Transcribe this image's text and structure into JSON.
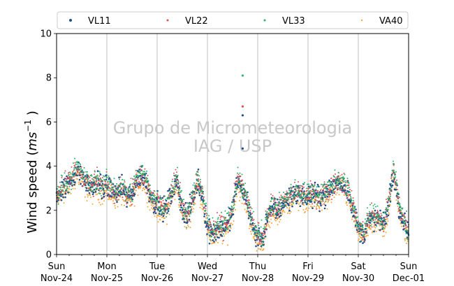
{
  "chart_data": {
    "type": "scatter",
    "title": "",
    "xlabel": "",
    "ylabel_text": "Wind speed (",
    "ylabel_unit_base": "ms",
    "ylabel_unit_exp": "−1",
    "ylabel_close": " )",
    "ylim": [
      0,
      10
    ],
    "yticks": [
      "0",
      "2",
      "4",
      "6",
      "8",
      "10"
    ],
    "xtick_day_names": [
      "Sun",
      "Mon",
      "Tue",
      "Wed",
      "Thu",
      "Fri",
      "Sat",
      "Sun"
    ],
    "xtick_dates": [
      "Nov-24",
      "Nov-25",
      "Nov-26",
      "Nov-27",
      "Nov-28",
      "Nov-29",
      "Nov-30",
      "Dec-01"
    ],
    "x_range_days": [
      0,
      7
    ],
    "grid": "vertical lines at day ticks",
    "legend_position": "top, above plot, one row",
    "watermark_line1": "Grupo de Micrometeorologia",
    "watermark_line2": "IAG / USP",
    "series": [
      {
        "name": "VL11",
        "color": "#1f4e8c",
        "marker": "circle",
        "offset": 0.0
      },
      {
        "name": "VL22",
        "color": "#e0525a",
        "marker": "circle",
        "offset": 0.1
      },
      {
        "name": "VL33",
        "color": "#2bb36b",
        "marker": "circle",
        "offset": 0.15
      },
      {
        "name": "VA40",
        "color": "#f5a53a",
        "marker": "circle",
        "offset": -0.25
      }
    ],
    "profile_hourly_approx": [
      [
        0.0,
        2.6
      ],
      [
        0.1,
        3.0
      ],
      [
        0.2,
        3.1
      ],
      [
        0.3,
        3.4
      ],
      [
        0.4,
        3.8
      ],
      [
        0.5,
        3.6
      ],
      [
        0.6,
        3.2
      ],
      [
        0.7,
        3.0
      ],
      [
        0.8,
        3.3
      ],
      [
        0.9,
        3.0
      ],
      [
        1.0,
        3.1
      ],
      [
        1.1,
        2.9
      ],
      [
        1.2,
        2.8
      ],
      [
        1.3,
        3.0
      ],
      [
        1.4,
        2.6
      ],
      [
        1.5,
        2.7
      ],
      [
        1.6,
        3.4
      ],
      [
        1.7,
        3.6
      ],
      [
        1.8,
        3.2
      ],
      [
        1.9,
        2.5
      ],
      [
        2.0,
        2.3
      ],
      [
        2.1,
        2.0
      ],
      [
        2.2,
        2.2
      ],
      [
        2.3,
        2.9
      ],
      [
        2.4,
        3.3
      ],
      [
        2.5,
        2.1
      ],
      [
        2.6,
        1.7
      ],
      [
        2.7,
        2.4
      ],
      [
        2.8,
        3.3
      ],
      [
        2.9,
        2.7
      ],
      [
        3.0,
        1.2
      ],
      [
        3.1,
        1.0
      ],
      [
        3.2,
        1.1
      ],
      [
        3.3,
        1.2
      ],
      [
        3.4,
        1.3
      ],
      [
        3.5,
        2.0
      ],
      [
        3.6,
        3.4
      ],
      [
        3.7,
        2.9
      ],
      [
        3.8,
        2.3
      ],
      [
        3.9,
        1.2
      ],
      [
        4.0,
        0.8
      ],
      [
        4.1,
        0.7
      ],
      [
        4.2,
        1.7
      ],
      [
        4.3,
        2.1
      ],
      [
        4.4,
        2.0
      ],
      [
        4.5,
        2.3
      ],
      [
        4.6,
        2.5
      ],
      [
        4.7,
        2.7
      ],
      [
        4.8,
        2.8
      ],
      [
        4.9,
        2.6
      ],
      [
        5.0,
        2.6
      ],
      [
        5.1,
        2.7
      ],
      [
        5.2,
        2.6
      ],
      [
        5.3,
        2.7
      ],
      [
        5.4,
        2.8
      ],
      [
        5.5,
        3.1
      ],
      [
        5.6,
        3.3
      ],
      [
        5.7,
        3.2
      ],
      [
        5.8,
        2.8
      ],
      [
        5.9,
        2.0
      ],
      [
        6.0,
        1.2
      ],
      [
        6.1,
        0.9
      ],
      [
        6.2,
        1.5
      ],
      [
        6.3,
        1.6
      ],
      [
        6.4,
        1.6
      ],
      [
        6.5,
        1.3
      ],
      [
        6.6,
        2.2
      ],
      [
        6.7,
        3.8
      ],
      [
        6.8,
        2.3
      ],
      [
        6.9,
        1.4
      ],
      [
        7.0,
        1.0
      ]
    ],
    "notable_points": [
      {
        "x": 3.7,
        "y": 8.1,
        "series": "VL33"
      },
      {
        "x": 3.7,
        "y": 6.7,
        "series": "VL22"
      },
      {
        "x": 3.7,
        "y": 6.3,
        "series": "VL11"
      },
      {
        "x": 3.7,
        "y": 4.8,
        "series": "VL11"
      }
    ]
  }
}
